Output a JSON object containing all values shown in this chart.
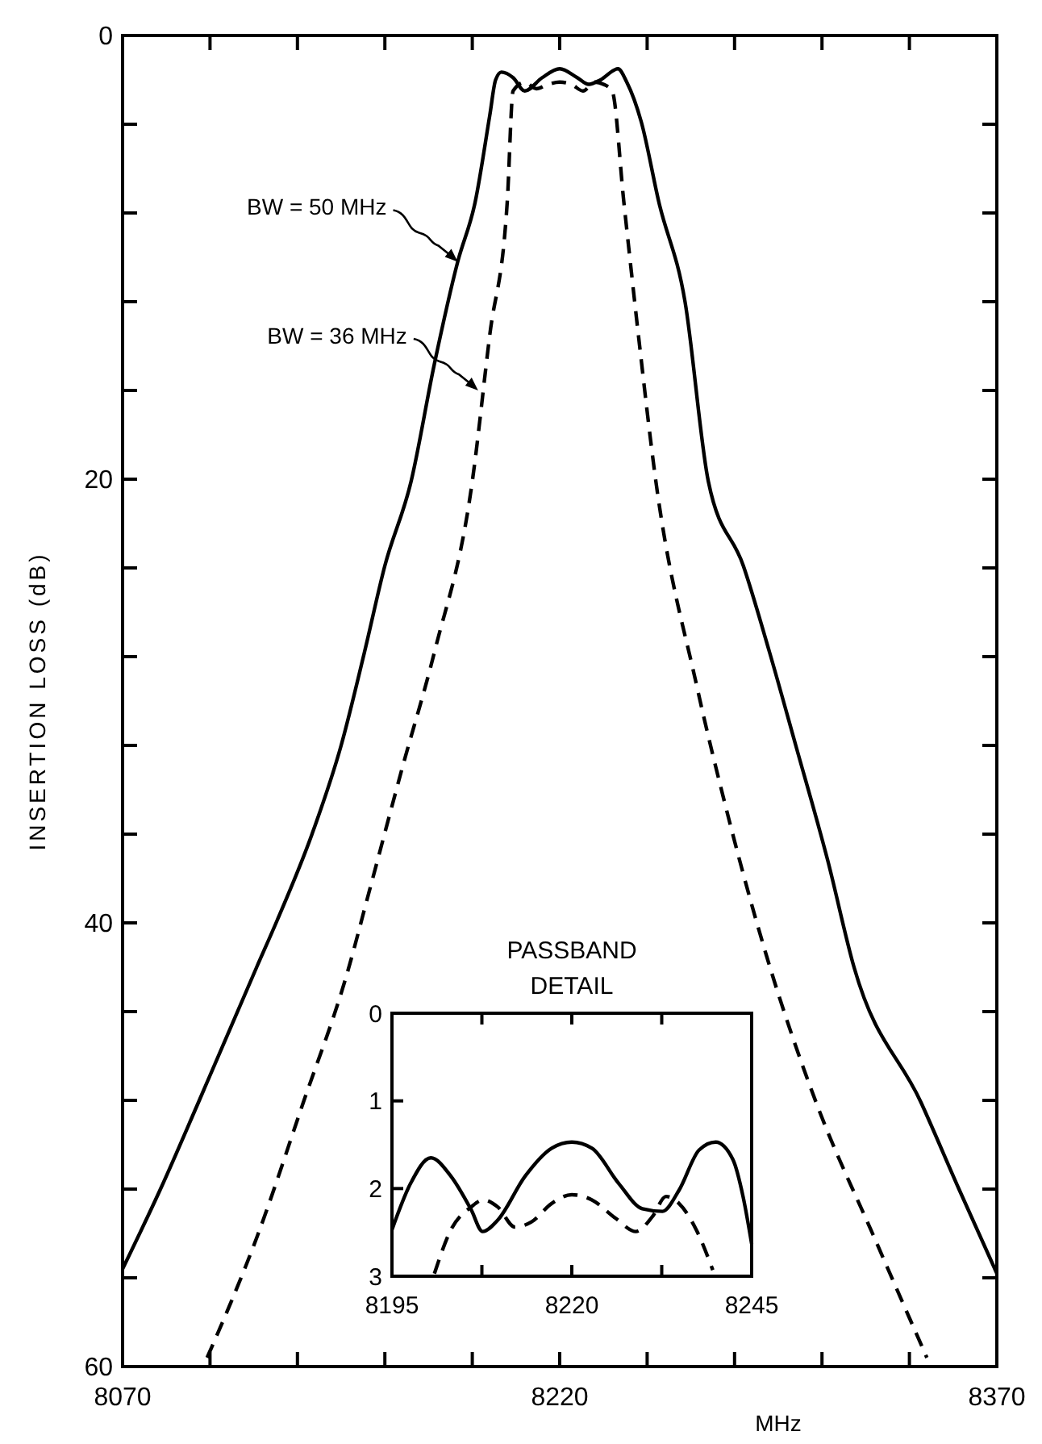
{
  "chart_data": [
    {
      "type": "line",
      "xlabel": "MHz",
      "ylabel": "INSERTION LOSS (dB)",
      "xlim": [
        8070,
        8370
      ],
      "ylim": [
        60,
        0
      ],
      "xticks": [
        8070,
        {
          "value": 8100,
          "label": null
        },
        {
          "value": 8130,
          "label": null
        },
        {
          "value": 8160,
          "label": null
        },
        {
          "value": 8190,
          "label": null
        },
        8220,
        {
          "value": 8250,
          "label": null
        },
        {
          "value": 8280,
          "label": null
        },
        {
          "value": 8310,
          "label": null
        },
        {
          "value": 8340,
          "label": null
        },
        8370
      ],
      "yticks": [
        0,
        {
          "value": 4,
          "label": null
        },
        {
          "value": 8,
          "label": null
        },
        {
          "value": 12,
          "label": null
        },
        {
          "value": 16,
          "label": null
        },
        20,
        {
          "value": 24,
          "label": null
        },
        {
          "value": 28,
          "label": null
        },
        {
          "value": 32,
          "label": null
        },
        {
          "value": 36,
          "label": null
        },
        40,
        {
          "value": 44,
          "label": null
        },
        {
          "value": 48,
          "label": null
        },
        {
          "value": 52,
          "label": null
        },
        {
          "value": 56,
          "label": null
        },
        60
      ],
      "grid": false,
      "series": [
        {
          "color": "#000000",
          "line_style": "solid",
          "x": [
            8070,
            8083,
            8096,
            8116,
            8123,
            8135,
            8145,
            8153,
            8160,
            8169,
            8177,
            8185,
            8191,
            8196,
            8198,
            8200,
            8204,
            8208,
            8214,
            8220,
            8226,
            8230,
            8234,
            8240,
            8243,
            8248,
            8254,
            8263,
            8271,
            8283,
            8292,
            8301,
            8312,
            8321,
            8344,
            8357,
            8370
          ],
          "values": [
            55.6,
            52,
            48.1,
            42,
            39.9,
            36,
            32,
            27.8,
            23.9,
            20.1,
            14.8,
            10.2,
            7.5,
            3.6,
            2.0,
            1.65,
            1.9,
            2.5,
            1.9,
            1.5,
            1.9,
            2.2,
            2.0,
            1.5,
            2.1,
            3.9,
            7.5,
            12,
            20.1,
            23.9,
            27.8,
            32,
            37.2,
            42,
            48.1,
            52,
            55.8
          ]
        },
        {
          "color": "#000000",
          "line_style": "dashed",
          "x": [
            8099,
            8116,
            8132,
            8147,
            8155,
            8166,
            8177,
            8190,
            8196,
            8202,
            8204,
            8208,
            8212,
            8216,
            8220,
            8224,
            8228,
            8232,
            8235,
            8238,
            8242,
            8247,
            8253,
            8267,
            8278,
            8291,
            8308,
            8328,
            8346
          ],
          "values": [
            59.6,
            54.2,
            48.1,
            42.3,
            38.4,
            33,
            27.8,
            20.1,
            13.5,
            7.5,
            2.5,
            2.1,
            2.4,
            2.2,
            2.1,
            2.2,
            2.5,
            2.1,
            2.2,
            2.5,
            7.5,
            13.5,
            20.1,
            29.3,
            35.3,
            41.5,
            48.1,
            54.2,
            59.6
          ]
        }
      ],
      "annotations": [
        {
          "text": "BW = 50 MHz",
          "x": 8185,
          "y": 10.2
        },
        {
          "text": "BW = 36 MHz",
          "x": 8192,
          "y": 16
        }
      ]
    },
    {
      "type": "line",
      "title": "PASSBAND DETAIL",
      "xlim": [
        8195,
        8245
      ],
      "ylim": [
        3,
        0
      ],
      "xticks": [
        8195,
        {
          "value": 8207.5,
          "label": null
        },
        8220,
        {
          "value": 8232.5,
          "label": null
        },
        8245
      ],
      "yticks": [
        0,
        1,
        2,
        3
      ],
      "grid": false,
      "series": [
        {
          "color": "#000000",
          "line_style": "solid",
          "x": [
            8195,
            8197.6,
            8200.4,
            8203.2,
            8206,
            8207.6,
            8209.7,
            8213.5,
            8217.2,
            8220,
            8222.8,
            8226.5,
            8229.8,
            8232.6,
            8234.9,
            8237.7,
            8240,
            8242.4,
            8243.8,
            8245
          ],
          "values": [
            2.47,
            1.94,
            1.65,
            1.86,
            2.24,
            2.49,
            2.36,
            1.86,
            1.54,
            1.47,
            1.54,
            1.94,
            2.23,
            2.26,
            2.02,
            1.56,
            1.47,
            1.67,
            2.09,
            2.63
          ]
        },
        {
          "color": "#000000",
          "line_style": "dashed",
          "x": [
            8200.9,
            8203.2,
            8206,
            8207.7,
            8209.7,
            8212.1,
            8214.4,
            8217.2,
            8220,
            8222.8,
            8226.1,
            8228.9,
            8231.2,
            8233.1,
            8234.9,
            8237.3,
            8239.6
          ],
          "values": [
            2.97,
            2.47,
            2.21,
            2.13,
            2.21,
            2.44,
            2.38,
            2.17,
            2.07,
            2.13,
            2.34,
            2.49,
            2.32,
            2.09,
            2.17,
            2.47,
            2.93
          ]
        }
      ]
    }
  ]
}
